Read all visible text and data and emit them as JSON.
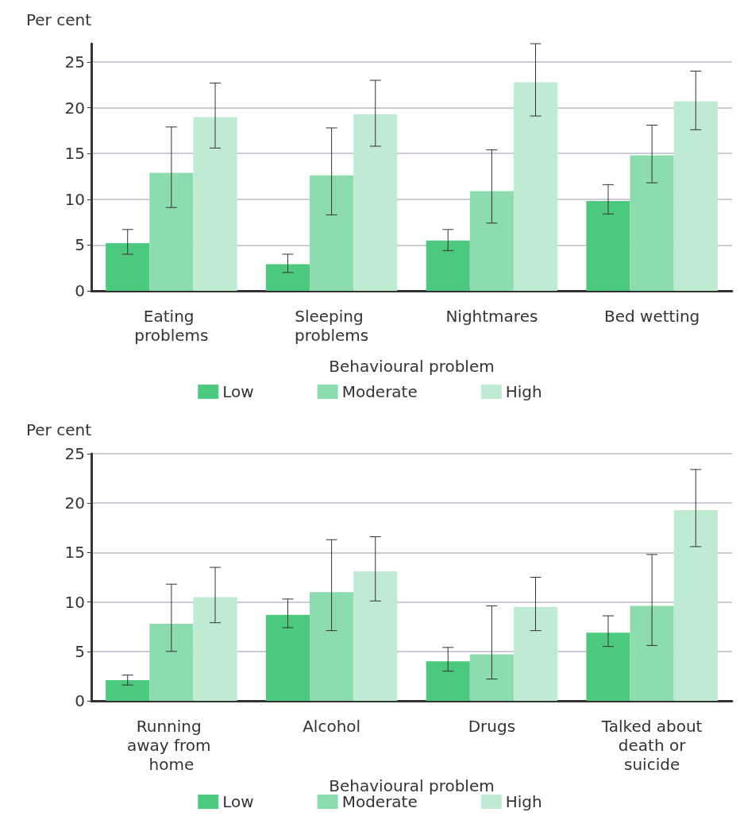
{
  "chart_data": [
    {
      "type": "bar",
      "ylabel": "Per cent",
      "xlabel": "Behavioural problem",
      "categories": [
        "Eating problems",
        "Sleeping problems",
        "Nightmares",
        "Bed wetting"
      ],
      "ylim": [
        0,
        27
      ],
      "yticks": [
        0,
        5,
        10,
        15,
        20,
        25
      ],
      "grid": "y",
      "legend": "bottom",
      "series": [
        {
          "name": "Low",
          "color": "#4dc97f",
          "values": [
            5.2,
            2.9,
            5.5,
            9.8
          ],
          "errors": [
            [
              4.0,
              6.7
            ],
            [
              2.0,
              4.0
            ],
            [
              4.4,
              6.7
            ],
            [
              8.4,
              11.6
            ]
          ]
        },
        {
          "name": "Moderate",
          "color": "#8cdcaf",
          "values": [
            12.9,
            12.6,
            10.9,
            14.8
          ],
          "errors": [
            [
              9.1,
              17.9
            ],
            [
              8.3,
              17.8
            ],
            [
              7.4,
              15.4
            ],
            [
              11.8,
              18.1
            ]
          ]
        },
        {
          "name": "High",
          "color": "#c0ebd3",
          "values": [
            19.0,
            19.3,
            22.8,
            20.7
          ],
          "errors": [
            [
              15.6,
              22.7
            ],
            [
              15.8,
              23.0
            ],
            [
              19.1,
              27.0
            ],
            [
              17.6,
              24.0
            ]
          ]
        }
      ]
    },
    {
      "type": "bar",
      "ylabel": "Per cent",
      "xlabel": "Behavioural problem",
      "categories": [
        "Running away from home",
        "Alcohol",
        "Drugs",
        "Talked about death or suicide"
      ],
      "ylim": [
        0,
        25
      ],
      "yticks": [
        0,
        5,
        10,
        15,
        20,
        25
      ],
      "grid": "y",
      "legend": "bottom",
      "series": [
        {
          "name": "Low",
          "color": "#4dc97f",
          "values": [
            2.1,
            8.7,
            4.0,
            6.9
          ],
          "errors": [
            [
              1.6,
              2.6
            ],
            [
              7.4,
              10.3
            ],
            [
              3.0,
              5.4
            ],
            [
              5.5,
              8.6
            ]
          ]
        },
        {
          "name": "Moderate",
          "color": "#8cdcaf",
          "values": [
            7.8,
            11.0,
            4.7,
            9.6
          ],
          "errors": [
            [
              5.0,
              11.8
            ],
            [
              7.1,
              16.3
            ],
            [
              2.2,
              9.6
            ],
            [
              5.6,
              14.8
            ]
          ]
        },
        {
          "name": "High",
          "color": "#c0ebd3",
          "values": [
            10.5,
            13.1,
            9.5,
            19.3
          ],
          "errors": [
            [
              7.9,
              13.5
            ],
            [
              10.1,
              16.6
            ],
            [
              7.1,
              12.5
            ],
            [
              15.6,
              23.4
            ]
          ]
        }
      ]
    }
  ]
}
